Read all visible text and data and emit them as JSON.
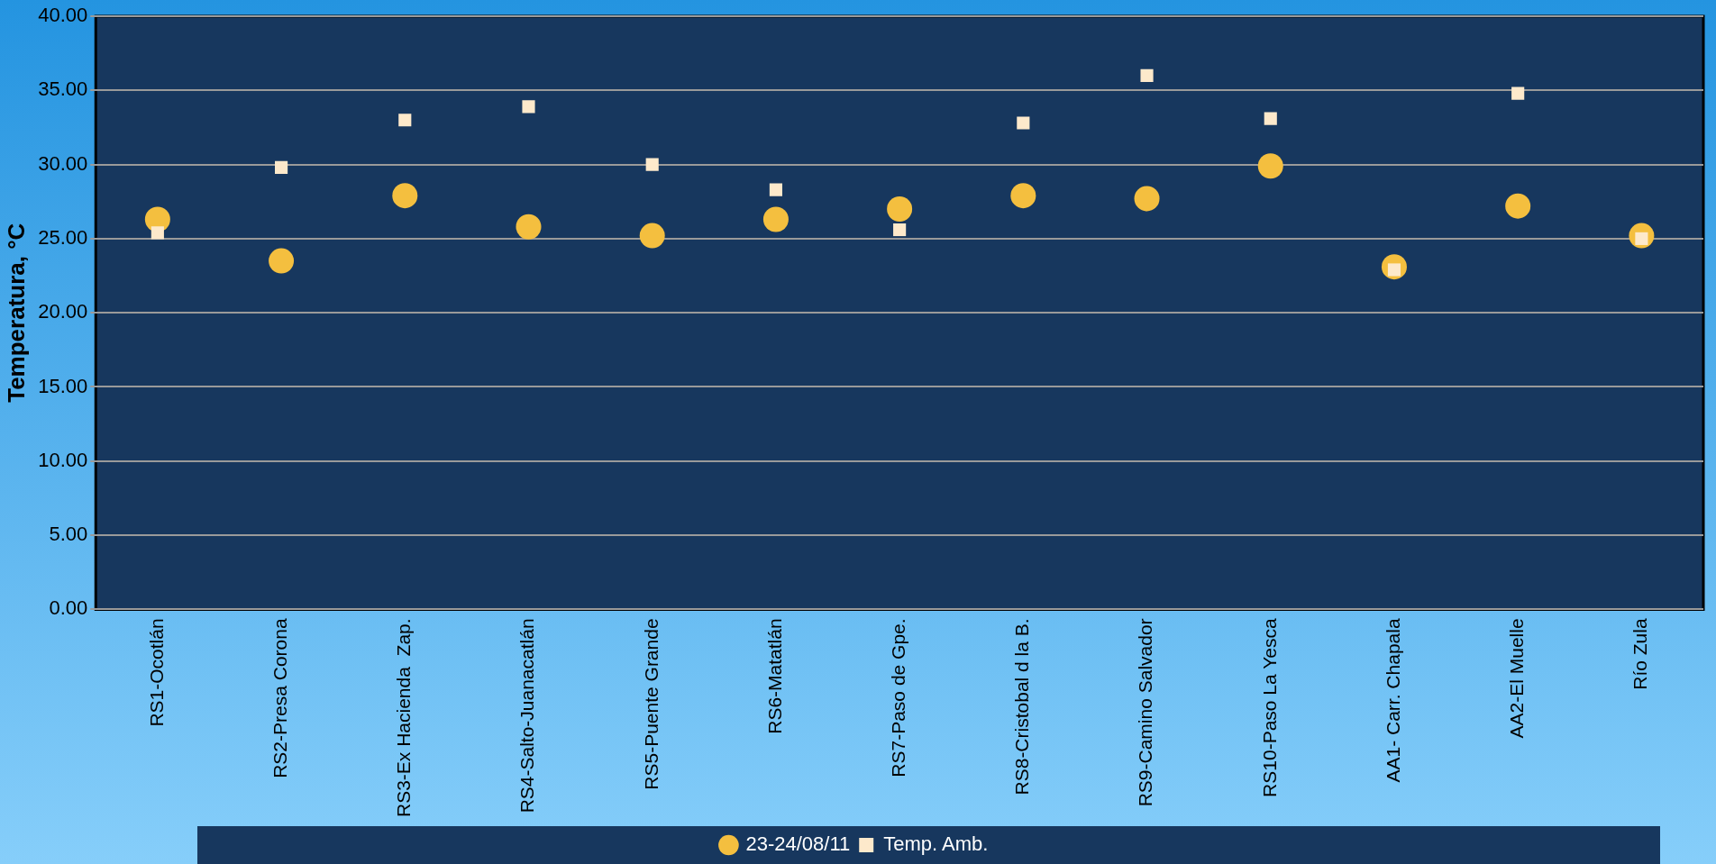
{
  "chart_data": {
    "type": "scatter",
    "ylabel": "Temperatura, °C",
    "categories": [
      "RS1-Ocotlán",
      "RS2-Presa Corona",
      "RS3-Ex Hacienda  Zap.",
      "RS4-Salto-Juanacatlán",
      "RS5-Puente Grande",
      "RS6-Matatlán",
      "RS7-Paso de Gpe.",
      "RS8-Cristobal d la B.",
      "RS9-Camino Salvador",
      "RS10-Paso La Yesca",
      "AA1- Carr. Chapala",
      "AA2-El Muelle",
      "Río Zula"
    ],
    "series": [
      {
        "name": "23-24/08/11",
        "color": "#f4bf3f",
        "marker": "circle",
        "values": [
          26.3,
          23.5,
          27.9,
          25.8,
          25.2,
          26.3,
          27.0,
          27.9,
          27.7,
          29.9,
          23.1,
          27.2,
          25.2
        ]
      },
      {
        "name": "Temp. Amb.",
        "color": "#fde9cb",
        "marker": "square",
        "values": [
          25.4,
          29.8,
          33.0,
          33.9,
          30.0,
          28.3,
          25.6,
          32.8,
          36.0,
          33.1,
          22.9,
          34.8,
          25.0
        ]
      }
    ],
    "ylim": [
      0,
      40
    ],
    "yticks": [
      {
        "value": 0,
        "label": "0.00"
      },
      {
        "value": 5,
        "label": "5.00"
      },
      {
        "value": 10,
        "label": "10.00"
      },
      {
        "value": 15,
        "label": "15.00"
      },
      {
        "value": 20,
        "label": "20.00"
      },
      {
        "value": 25,
        "label": "25.00"
      },
      {
        "value": 30,
        "label": "30.00"
      },
      {
        "value": 35,
        "label": "35.00"
      },
      {
        "value": 40,
        "label": "40.00"
      }
    ],
    "grid": "y",
    "legend": "bottom"
  }
}
